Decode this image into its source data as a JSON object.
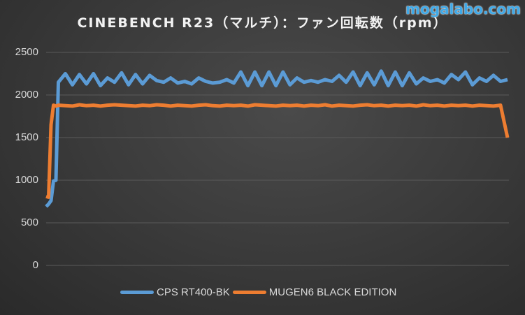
{
  "title": "CINEBENCH R23（マルチ）：ファン回転数（rpm）",
  "watermark": "mogalabo.com",
  "colors": {
    "series1": "#5b9bd5",
    "series2": "#ed7d31",
    "grid": "#5a5a5a",
    "text": "#d9d9d9"
  },
  "yaxis": {
    "ticks": [
      "2500",
      "2000",
      "1500",
      "1000",
      "500",
      "0"
    ]
  },
  "legend": {
    "items": [
      {
        "label": "CPS RT400-BK"
      },
      {
        "label": "MUGEN6 BLACK EDITION"
      }
    ]
  },
  "chart_data": {
    "type": "line",
    "title": "CINEBENCH R23（マルチ）：ファン回転数（rpm）",
    "xlabel": "",
    "ylabel": "",
    "ylim": [
      0,
      2500
    ],
    "yticks": [
      0,
      500,
      1000,
      1500,
      2000,
      2500
    ],
    "grid": true,
    "legend_position": "bottom",
    "series": [
      {
        "name": "CPS RT400-BK",
        "color": "#5b9bd5",
        "description": "Starts ~700 rpm, steps to ~1000, jumps to ~2100-2250 and oscillates between ~2100 and ~2280 for the rest of the run",
        "values": [
          690,
          720,
          760,
          990,
          1000,
          2150,
          2250,
          2120,
          2240,
          2130,
          2250,
          2110,
          2200,
          2150,
          2260,
          2120,
          2240,
          2130,
          2230,
          2170,
          2150,
          2200,
          2140,
          2160,
          2130,
          2200,
          2160,
          2140,
          2150,
          2180,
          2140,
          2270,
          2110,
          2270,
          2110,
          2270,
          2110,
          2270,
          2120,
          2200,
          2150,
          2170,
          2150,
          2180,
          2160,
          2230,
          2150,
          2270,
          2110,
          2260,
          2120,
          2280,
          2110,
          2270,
          2110,
          2260,
          2130,
          2200,
          2160,
          2180,
          2140,
          2240,
          2180,
          2270,
          2120,
          2200,
          2160,
          2230,
          2160,
          2180
        ]
      },
      {
        "name": "MUGEN6 BLACK EDITION",
        "color": "#ed7d31",
        "description": "Starts ~800 rpm, ramps to ~1880 and stays flat ~1860-1890, drops to ~1500 at the end",
        "values": [
          810,
          800,
          1650,
          1880,
          1870,
          1880,
          1875,
          1870,
          1885,
          1875,
          1880,
          1870,
          1880,
          1885,
          1880,
          1875,
          1870,
          1880,
          1875,
          1885,
          1880,
          1870,
          1880,
          1875,
          1870,
          1880,
          1885,
          1875,
          1870,
          1880,
          1875,
          1880,
          1870,
          1885,
          1880,
          1875,
          1870,
          1880,
          1875,
          1880,
          1870,
          1880,
          1875,
          1885,
          1870,
          1880,
          1875,
          1870,
          1880,
          1885,
          1875,
          1880,
          1870,
          1880,
          1875,
          1880,
          1870,
          1885,
          1875,
          1880,
          1870,
          1880,
          1875,
          1880,
          1870,
          1880,
          1875,
          1870,
          1880,
          1500
        ]
      }
    ]
  }
}
